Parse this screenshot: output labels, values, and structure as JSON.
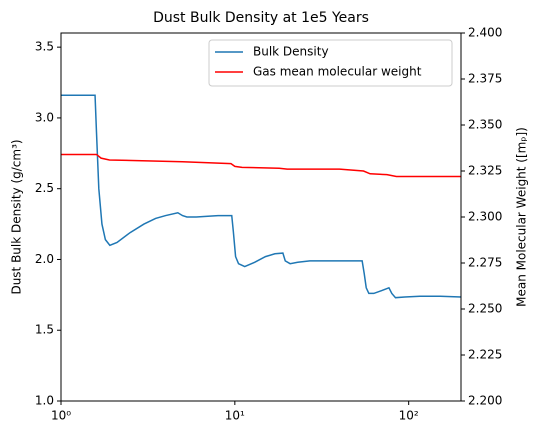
{
  "chart_data": {
    "type": "line",
    "title": "Dust Bulk Density at 1e5 Years",
    "xscale": "log",
    "y_label": "Dust Bulk Density (g/cm³)",
    "y2_label": "Mean Molecular Weight ([mₚ])",
    "xlim": [
      1,
      200
    ],
    "xticks": [
      {
        "value": 1,
        "label": "10⁰"
      },
      {
        "value": 10,
        "label": "10¹"
      },
      {
        "value": 100,
        "label": "10²"
      }
    ],
    "ylim": [
      1.0,
      3.6
    ],
    "yticks": [
      {
        "value": 1.0,
        "label": "1.0"
      },
      {
        "value": 1.5,
        "label": "1.5"
      },
      {
        "value": 2.0,
        "label": "2.0"
      },
      {
        "value": 2.5,
        "label": "2.5"
      },
      {
        "value": 3.0,
        "label": "3.0"
      },
      {
        "value": 3.5,
        "label": "3.5"
      }
    ],
    "y2lim": [
      2.2,
      2.4
    ],
    "y2ticks": [
      {
        "value": 2.2,
        "label": "2.200"
      },
      {
        "value": 2.225,
        "label": "2.225"
      },
      {
        "value": 2.25,
        "label": "2.250"
      },
      {
        "value": 2.275,
        "label": "2.275"
      },
      {
        "value": 2.3,
        "label": "2.300"
      },
      {
        "value": 2.325,
        "label": "2.325"
      },
      {
        "value": 2.35,
        "label": "2.350"
      },
      {
        "value": 2.375,
        "label": "2.375"
      },
      {
        "value": 2.4,
        "label": "2.400"
      }
    ],
    "legend": "upper right",
    "series": [
      {
        "name": "Bulk Density",
        "color": "#1f77b4",
        "axis": "y",
        "x": [
          1,
          1.3,
          1.57,
          1.6,
          1.65,
          1.72,
          1.8,
          1.91,
          2.1,
          2.5,
          3,
          3.5,
          4,
          4.7,
          5.0,
          5.3,
          6,
          7,
          8,
          9.6,
          9.8,
          10.1,
          10.5,
          11.4,
          13,
          15,
          17,
          18.9,
          19.5,
          20.8,
          23,
          27,
          35,
          45,
          54,
          55.5,
          57,
          59,
          63,
          70,
          77,
          80,
          84,
          95,
          116,
          152,
          200
        ],
        "values": [
          3.16,
          3.16,
          3.16,
          2.9,
          2.5,
          2.25,
          2.14,
          2.1,
          2.12,
          2.19,
          2.25,
          2.29,
          2.31,
          2.33,
          2.31,
          2.3,
          2.3,
          2.305,
          2.31,
          2.31,
          2.2,
          2.02,
          1.97,
          1.95,
          1.98,
          2.02,
          2.04,
          2.045,
          1.99,
          1.97,
          1.98,
          1.99,
          1.99,
          1.99,
          1.99,
          1.9,
          1.8,
          1.76,
          1.76,
          1.78,
          1.8,
          1.76,
          1.73,
          1.735,
          1.74,
          1.74,
          1.735
        ]
      },
      {
        "name": "Gas mean molecular weight",
        "color": "#ff0000",
        "axis": "y2",
        "x": [
          1,
          1.6,
          1.7,
          1.9,
          5,
          9.5,
          10,
          11,
          18,
          20,
          40,
          55,
          60,
          75,
          85,
          200
        ],
        "values": [
          2.334,
          2.334,
          2.332,
          2.331,
          2.33,
          2.329,
          2.3275,
          2.327,
          2.3265,
          2.326,
          2.326,
          2.325,
          2.3235,
          2.323,
          2.322,
          2.322
        ]
      }
    ]
  }
}
